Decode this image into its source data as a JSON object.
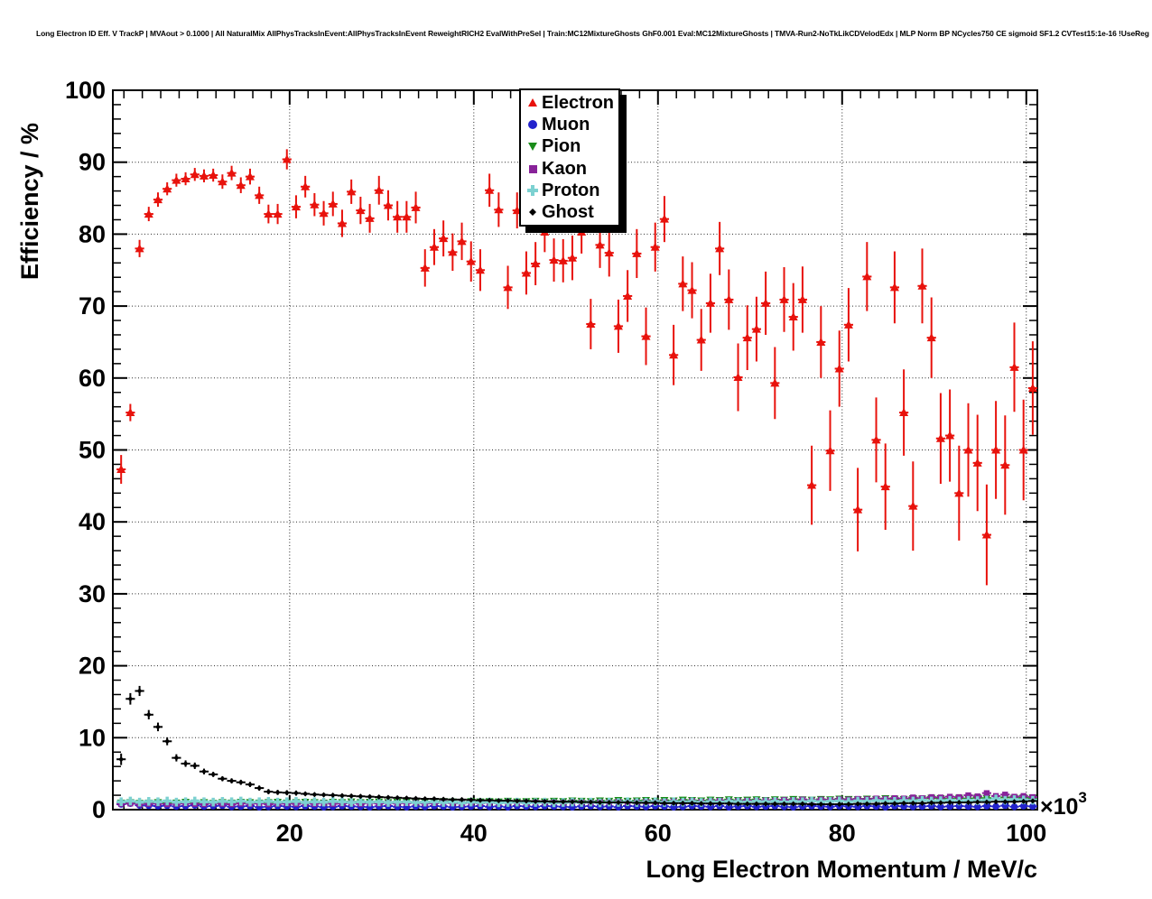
{
  "chart_data": {
    "type": "scatter",
    "title": "Long Electron ID Eff. V TrackP | MVAout > 0.1000 | All NaturalMix AllPhysTracksInEvent:AllPhysTracksInEvent ReweightRICH2 EvalWithPreSel | Train:MC12MixtureGhosts GhF0.001 Eval:MC12MixtureGhosts | TMVA-Run2-NoTkLikCDVelodEdx | MLP Norm BP NCycles750 CE sigmoid SF1.2 CVTest15:1e-16 !UseReg",
    "xlabel": "Long Electron Momentum / MeV/c",
    "ylabel": "Efficiency / %",
    "x_power_label": "×10",
    "x_power_exponent": "3",
    "xlim": [
      0.8,
      101.2
    ],
    "ylim": [
      0,
      100
    ],
    "xticks": [
      20,
      40,
      60,
      80,
      100
    ],
    "yticks": [
      0,
      10,
      20,
      30,
      40,
      50,
      60,
      70,
      80,
      90,
      100
    ],
    "minor_x_step": 2,
    "minor_y_step": 2,
    "grid": true,
    "legend_position": "top-center",
    "bin_half_width": 0.5,
    "p": [
      1.7,
      2.7,
      3.7,
      4.7,
      5.7,
      6.7,
      7.7,
      8.7,
      9.7,
      10.7,
      11.7,
      12.7,
      13.7,
      14.7,
      15.7,
      16.7,
      17.7,
      18.7,
      19.7,
      20.7,
      21.7,
      22.7,
      23.7,
      24.7,
      25.7,
      26.7,
      27.7,
      28.7,
      29.7,
      30.7,
      31.7,
      32.7,
      33.7,
      34.7,
      35.7,
      36.7,
      37.7,
      38.7,
      39.7,
      40.7,
      41.7,
      42.7,
      43.7,
      44.7,
      45.7,
      46.7,
      47.7,
      48.7,
      49.7,
      50.7,
      51.7,
      52.7,
      53.7,
      54.7,
      55.7,
      56.7,
      57.7,
      58.7,
      59.7,
      60.7,
      61.7,
      62.7,
      63.7,
      64.7,
      65.7,
      66.7,
      67.7,
      68.7,
      69.7,
      70.7,
      71.7,
      72.7,
      73.7,
      74.7,
      75.7,
      76.7,
      77.7,
      78.7,
      79.7,
      80.7,
      81.7,
      82.7,
      83.7,
      84.7,
      85.7,
      86.7,
      87.7,
      88.7,
      89.7,
      90.7,
      91.7,
      92.7,
      93.7,
      94.7,
      95.7,
      96.7,
      97.7,
      98.7,
      99.7,
      100.7
    ],
    "series": [
      {
        "name": "Electron",
        "marker": "triangle-up",
        "color": "#e8120c",
        "marker_size": 5,
        "eff": [
          47.3,
          55.2,
          78.0,
          82.8,
          84.8,
          86.3,
          87.5,
          87.7,
          88.3,
          88.1,
          88.2,
          87.3,
          88.5,
          86.8,
          88.0,
          85.4,
          82.8,
          82.8,
          90.4,
          83.8,
          86.6,
          84.1,
          82.9,
          84.2,
          81.5,
          85.9,
          83.3,
          82.2,
          86.1,
          84.0,
          82.4,
          82.4,
          83.7,
          75.3,
          78.2,
          79.4,
          77.5,
          79.0,
          76.2,
          75.0,
          86.1,
          83.4,
          72.6,
          83.3,
          74.6,
          75.9,
          80.3,
          76.4,
          76.3,
          76.7,
          80.3,
          67.5,
          78.5,
          77.4,
          67.2,
          71.4,
          77.3,
          65.8,
          78.2,
          82.1,
          63.2,
          73.1,
          72.2,
          65.3,
          70.4,
          78.0,
          70.9,
          60.1,
          65.6,
          66.8,
          70.4,
          59.3,
          70.9,
          68.5,
          70.9,
          45.1,
          65.0,
          49.9,
          61.3,
          67.4,
          41.7,
          74.1,
          51.4,
          44.9,
          72.6,
          55.2,
          42.2,
          72.8,
          65.6,
          51.6,
          52.0,
          44.0,
          50.0,
          48.2,
          38.2,
          50.0,
          47.9,
          61.5,
          50.0,
          58.6
        ],
        "err": [
          2.0,
          1.2,
          1.2,
          1.0,
          1.0,
          0.9,
          0.9,
          0.9,
          0.9,
          0.9,
          0.9,
          1.0,
          1.0,
          1.1,
          1.1,
          1.2,
          1.3,
          1.4,
          1.4,
          1.6,
          1.5,
          1.6,
          1.7,
          1.7,
          1.9,
          1.7,
          1.9,
          2.0,
          2.0,
          2.1,
          2.2,
          2.2,
          2.2,
          2.6,
          2.5,
          2.5,
          2.6,
          2.6,
          2.8,
          2.9,
          2.3,
          2.4,
          3.0,
          2.5,
          3.0,
          3.0,
          2.8,
          3.0,
          3.0,
          3.1,
          3.0,
          3.5,
          3.2,
          3.3,
          3.7,
          3.6,
          3.4,
          4.0,
          3.4,
          3.2,
          4.2,
          3.8,
          3.9,
          4.3,
          4.1,
          3.7,
          4.2,
          4.7,
          4.5,
          4.5,
          4.4,
          5.0,
          4.5,
          4.7,
          4.6,
          5.5,
          5.0,
          5.6,
          5.3,
          5.1,
          5.8,
          4.8,
          5.9,
          6.0,
          5.0,
          6.0,
          6.2,
          5.2,
          5.6,
          6.3,
          6.4,
          6.6,
          6.5,
          6.7,
          7.0,
          6.8,
          6.9,
          6.2,
          7.0,
          6.5
        ]
      },
      {
        "name": "Muon",
        "marker": "circle",
        "color": "#2222cc",
        "marker_size": 3.8,
        "eff": [
          0.75,
          0.85,
          0.6,
          0.55,
          0.5,
          0.55,
          0.45,
          0.5,
          0.6,
          0.45,
          0.5,
          0.55,
          0.4,
          0.45,
          0.5,
          0.35,
          0.4,
          0.5,
          0.45,
          0.4,
          0.5,
          0.45,
          0.35,
          0.4,
          0.5,
          0.45,
          0.4,
          0.35,
          0.45,
          0.5,
          0.4,
          0.35,
          0.45,
          0.4,
          0.5,
          0.45,
          0.35,
          0.4,
          0.45,
          0.5,
          0.4,
          0.45,
          0.35,
          0.5,
          0.45,
          0.4,
          0.5,
          0.45,
          0.4,
          0.35,
          0.45,
          0.5,
          0.4,
          0.45,
          0.35,
          0.5,
          0.45,
          0.4,
          0.5,
          0.45,
          0.35,
          0.4,
          0.5,
          0.45,
          0.4,
          0.5,
          0.35,
          0.45,
          0.5,
          0.4,
          0.45,
          0.5,
          0.4,
          0.35,
          0.45,
          0.5,
          0.45,
          0.4,
          0.5,
          0.45,
          0.4,
          0.5,
          0.45,
          0.35,
          0.5,
          0.45,
          0.4,
          0.45,
          0.5,
          0.4,
          0.45,
          0.5,
          0.45,
          0.4,
          0.5,
          0.45,
          0.55,
          0.4,
          0.5,
          0.45
        ],
        "err": 0.15
      },
      {
        "name": "Pion",
        "marker": "triangle-down",
        "color": "#1a8c1a",
        "marker_size": 4.5,
        "eff": [
          0.95,
          1.0,
          0.9,
          0.95,
          1.0,
          0.9,
          0.95,
          1.05,
          0.95,
          1.0,
          0.9,
          1.0,
          0.95,
          1.05,
          1.0,
          0.95,
          1.0,
          1.05,
          0.95,
          1.0,
          1.05,
          1.0,
          0.95,
          1.05,
          1.0,
          1.1,
          1.0,
          1.05,
          1.1,
          1.0,
          1.05,
          1.1,
          1.0,
          1.1,
          1.05,
          1.15,
          1.1,
          1.05,
          1.15,
          1.1,
          1.15,
          1.1,
          1.2,
          1.1,
          1.15,
          1.2,
          1.1,
          1.2,
          1.15,
          1.25,
          1.2,
          1.15,
          1.25,
          1.2,
          1.3,
          1.2,
          1.25,
          1.3,
          1.2,
          1.3,
          1.25,
          1.35,
          1.3,
          1.25,
          1.35,
          1.3,
          1.4,
          1.3,
          1.35,
          1.4,
          1.3,
          1.4,
          1.35,
          1.45,
          1.4,
          1.35,
          1.45,
          1.4,
          1.5,
          1.45,
          1.4,
          1.5,
          1.45,
          1.55,
          1.5,
          1.45,
          1.55,
          1.5,
          1.6,
          1.55,
          1.5,
          1.6,
          1.55,
          1.65,
          1.6,
          1.55,
          1.7,
          1.6,
          1.65,
          1.6
        ],
        "err": 0.2
      },
      {
        "name": "Kaon",
        "marker": "square",
        "color": "#882299",
        "marker_size": 3.2,
        "eff": [
          0.8,
          0.85,
          0.75,
          0.8,
          0.85,
          0.75,
          0.8,
          0.85,
          0.8,
          0.75,
          0.85,
          0.8,
          0.75,
          0.85,
          0.8,
          0.85,
          0.75,
          0.8,
          0.85,
          0.8,
          0.85,
          0.8,
          0.9,
          0.8,
          0.85,
          0.9,
          0.8,
          0.9,
          0.85,
          0.9,
          0.85,
          0.9,
          0.95,
          0.85,
          0.9,
          0.95,
          0.9,
          0.85,
          0.95,
          0.9,
          0.95,
          0.9,
          1.0,
          0.95,
          0.9,
          1.0,
          0.95,
          1.0,
          0.95,
          1.05,
          1.0,
          0.95,
          1.05,
          1.0,
          1.1,
          1.0,
          1.05,
          1.1,
          1.05,
          1.1,
          1.15,
          1.1,
          1.2,
          1.1,
          1.15,
          1.25,
          1.15,
          1.2,
          1.25,
          1.2,
          1.3,
          1.25,
          1.35,
          1.3,
          1.4,
          1.3,
          1.4,
          1.35,
          1.45,
          1.4,
          1.5,
          1.45,
          1.55,
          1.5,
          1.6,
          1.55,
          1.7,
          1.6,
          1.75,
          1.7,
          1.8,
          1.75,
          2.0,
          1.85,
          2.3,
          1.9,
          2.1,
          1.8,
          1.9,
          1.75
        ],
        "err": 0.25
      },
      {
        "name": "Proton",
        "marker": "plus",
        "color": "#7cd1d1",
        "marker_size": 4.8,
        "eff": [
          1.1,
          1.2,
          1.05,
          1.15,
          1.1,
          1.2,
          1.05,
          1.1,
          1.2,
          1.1,
          1.05,
          1.15,
          1.1,
          1.2,
          1.05,
          1.1,
          1.15,
          1.05,
          1.1,
          1.15,
          1.0,
          1.1,
          1.05,
          1.15,
          1.1,
          1.0,
          1.1,
          1.05,
          1.1,
          1.0,
          1.05,
          1.1,
          1.0,
          1.05,
          1.1,
          1.0,
          1.05,
          0.95,
          1.05,
          1.0,
          1.05,
          0.95,
          1.0,
          1.05,
          0.95,
          1.0,
          1.05,
          0.95,
          1.0,
          1.05,
          1.0,
          1.05,
          0.95,
          1.05,
          1.0,
          1.1,
          1.0,
          1.05,
          1.1,
          1.0,
          1.1,
          1.05,
          1.1,
          1.0,
          1.1,
          1.05,
          1.15,
          1.1,
          1.05,
          1.15,
          1.1,
          1.15,
          1.05,
          1.15,
          1.1,
          1.2,
          1.1,
          1.15,
          1.2,
          1.1,
          1.2,
          1.15,
          1.25,
          1.2,
          1.15,
          1.25,
          1.2,
          1.3,
          1.2,
          1.25,
          1.3,
          1.2,
          1.3,
          1.25,
          1.35,
          1.5,
          1.3,
          1.4,
          1.35,
          1.3
        ],
        "err": 0.2
      },
      {
        "name": "Ghost",
        "marker": "diamond",
        "color": "#000000",
        "marker_size": 3.0,
        "eff": [
          7.0,
          15.4,
          16.5,
          13.2,
          11.5,
          9.5,
          7.2,
          6.4,
          6.1,
          5.3,
          4.9,
          4.3,
          4.0,
          3.8,
          3.5,
          3.0,
          2.5,
          2.4,
          2.35,
          2.3,
          2.2,
          2.1,
          2.05,
          2.0,
          1.95,
          1.9,
          1.85,
          1.8,
          1.75,
          1.7,
          1.65,
          1.6,
          1.55,
          1.5,
          1.5,
          1.45,
          1.4,
          1.4,
          1.35,
          1.3,
          1.3,
          1.25,
          1.25,
          1.2,
          1.2,
          1.15,
          1.15,
          1.1,
          1.1,
          1.1,
          1.05,
          1.05,
          1.0,
          1.0,
          1.0,
          1.0,
          0.95,
          0.95,
          0.95,
          0.9,
          0.9,
          0.9,
          0.9,
          0.85,
          0.85,
          0.85,
          0.85,
          0.8,
          0.8,
          0.8,
          0.8,
          0.8,
          0.8,
          0.8,
          0.8,
          0.75,
          0.75,
          0.75,
          0.75,
          0.75,
          0.8,
          0.8,
          0.8,
          0.85,
          0.85,
          0.9,
          0.9,
          0.9,
          0.95,
          0.95,
          1.0,
          1.0,
          1.0,
          1.05,
          1.05,
          1.1,
          1.1,
          1.1,
          1.15,
          1.2
        ],
        "err": [
          0.8,
          0.8,
          0.7,
          0.65,
          0.6,
          0.55,
          0.5,
          0.45,
          0.45,
          0.4,
          0.35,
          0.35,
          0.35,
          0.35,
          0.35,
          0.35,
          0.35,
          0.35,
          0.35,
          0.35,
          0.25,
          0.25,
          0.25,
          0.25,
          0.25,
          0.25,
          0.25,
          0.25,
          0.25,
          0.25,
          0.25,
          0.25,
          0.25,
          0.25,
          0.25,
          0.25,
          0.25,
          0.25,
          0.25,
          0.25,
          0.15,
          0.15,
          0.15,
          0.15,
          0.15,
          0.15,
          0.15,
          0.15,
          0.15,
          0.15,
          0.15,
          0.15,
          0.15,
          0.15,
          0.15,
          0.15,
          0.15,
          0.15,
          0.15,
          0.15,
          0.15,
          0.15,
          0.15,
          0.15,
          0.15,
          0.15,
          0.15,
          0.15,
          0.15,
          0.15,
          0.15,
          0.15,
          0.15,
          0.15,
          0.15,
          0.15,
          0.15,
          0.15,
          0.15,
          0.15,
          0.15,
          0.15,
          0.15,
          0.15,
          0.15,
          0.15,
          0.15,
          0.15,
          0.15,
          0.15,
          0.15,
          0.15,
          0.15,
          0.15,
          0.15,
          0.15,
          0.15,
          0.15,
          0.15,
          0.15
        ]
      }
    ]
  }
}
